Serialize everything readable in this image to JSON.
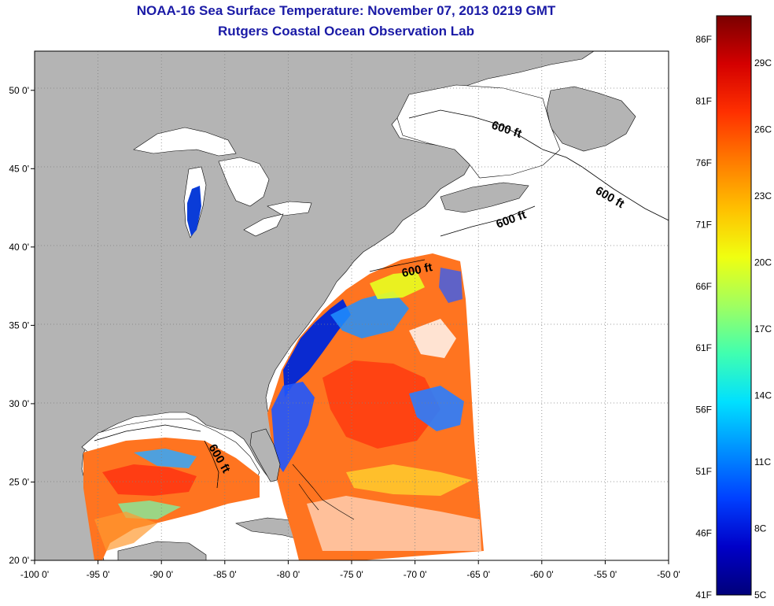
{
  "title": "NOAA-16 Sea Surface Temperature:  November 07, 2013 0219 GMT",
  "subtitle": "Rutgers Coastal Ocean Observation Lab",
  "map": {
    "lon_range": [
      -100,
      -50
    ],
    "lat_range": [
      20,
      52.5
    ],
    "lon_ticks": [
      "-100 0'",
      "-95 0'",
      "-90 0'",
      "-85 0'",
      "-80 0'",
      "-75 0'",
      "-70 0'",
      "-65 0'",
      "-60 0'",
      "-55 0'",
      "-50 0'"
    ],
    "lat_ticks": [
      "20 0'",
      "25 0'",
      "30 0'",
      "35 0'",
      "40 0'",
      "45 0'",
      "50 0'"
    ],
    "grid": "dotted",
    "land_color": "#b4b4b4",
    "no_data_color": "#ffffff",
    "contour_labels": [
      "600 ft",
      "600 ft",
      "600 ft",
      "600 ft",
      "600 ft"
    ]
  },
  "colorbar": {
    "fahrenheit_labels": [
      "86F",
      "81F",
      "76F",
      "71F",
      "66F",
      "61F",
      "56F",
      "51F",
      "46F",
      "41F"
    ],
    "celsius_labels": [
      "29C",
      "26C",
      "23C",
      "20C",
      "17C",
      "14C",
      "11C",
      "8C",
      "5C"
    ],
    "colors": [
      "#7a0000",
      "#d40000",
      "#ff3000",
      "#ff7a00",
      "#ffc000",
      "#f0ff10",
      "#a0ff60",
      "#40ffb0",
      "#00e0ff",
      "#0090ff",
      "#0040ff",
      "#0000c8",
      "#00007a"
    ]
  }
}
